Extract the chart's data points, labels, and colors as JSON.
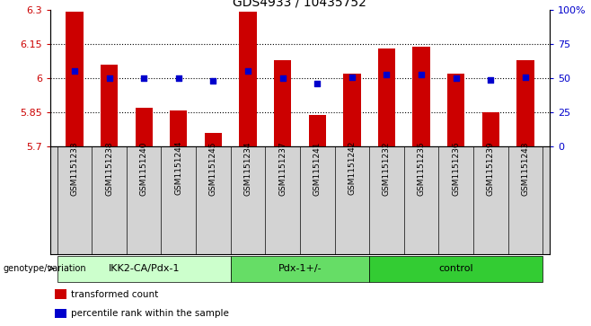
{
  "title": "GDS4933 / 10435752",
  "samples": [
    "GSM1151233",
    "GSM1151238",
    "GSM1151240",
    "GSM1151244",
    "GSM1151245",
    "GSM1151234",
    "GSM1151237",
    "GSM1151241",
    "GSM1151242",
    "GSM1151232",
    "GSM1151235",
    "GSM1151236",
    "GSM1151239",
    "GSM1151243"
  ],
  "bar_values": [
    6.29,
    6.06,
    5.87,
    5.86,
    5.76,
    6.29,
    6.08,
    5.84,
    6.02,
    6.13,
    6.14,
    6.02,
    5.85,
    6.08
  ],
  "dot_values": [
    55,
    50,
    50,
    50,
    48,
    55,
    50,
    46,
    51,
    53,
    53,
    50,
    49,
    51
  ],
  "ylim_left": [
    5.7,
    6.3
  ],
  "ylim_right": [
    0,
    100
  ],
  "yticks_left": [
    5.7,
    5.85,
    6.0,
    6.15,
    6.3
  ],
  "yticks_right": [
    0,
    25,
    50,
    75,
    100
  ],
  "ytick_labels_left": [
    "5.7",
    "5.85",
    "6",
    "6.15",
    "6.3"
  ],
  "ytick_labels_right": [
    "0",
    "25",
    "50",
    "75",
    "100%"
  ],
  "hlines": [
    5.85,
    6.0,
    6.15
  ],
  "bar_color": "#cc0000",
  "dot_color": "#0000cc",
  "groups": [
    {
      "label": "IKK2-CA/Pdx-1",
      "start": 0,
      "end": 5,
      "color": "#ccffcc"
    },
    {
      "label": "Pdx-1+/-",
      "start": 5,
      "end": 9,
      "color": "#66dd66"
    },
    {
      "label": "control",
      "start": 9,
      "end": 14,
      "color": "#33cc33"
    }
  ],
  "group_label": "genotype/variation",
  "legend_items": [
    {
      "color": "#cc0000",
      "label": "transformed count"
    },
    {
      "color": "#0000cc",
      "label": "percentile rank within the sample"
    }
  ],
  "bar_width": 0.5,
  "background_color": "#ffffff",
  "tick_area_color": "#d3d3d3"
}
